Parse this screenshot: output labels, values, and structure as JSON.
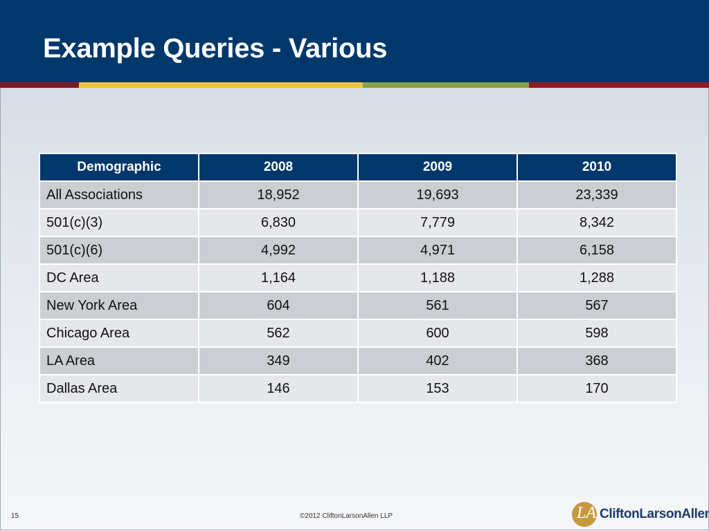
{
  "slide": {
    "title": "Example Queries - Various",
    "page_number": "15",
    "copyright": "©2012 CliftonLarsonAllen LLP",
    "logo_mark": "LA",
    "logo_text": "CliftonLarsonAllen"
  },
  "table": {
    "headers": [
      "Demographic",
      "2008",
      "2009",
      "2010"
    ],
    "rows": [
      [
        "All Associations",
        "18,952",
        "19,693",
        "23,339"
      ],
      [
        "501(c)(3)",
        "6,830",
        "7,779",
        "8,342"
      ],
      [
        "501(c)(6)",
        "4,992",
        "4,971",
        "6,158"
      ],
      [
        "DC Area",
        "1,164",
        "1,188",
        "1,288"
      ],
      [
        "New York Area",
        "604",
        "561",
        "567"
      ],
      [
        "Chicago Area",
        "562",
        "600",
        "598"
      ],
      [
        "LA Area",
        "349",
        "402",
        "368"
      ],
      [
        "Dallas Area",
        "146",
        "153",
        "170"
      ]
    ]
  },
  "colors": {
    "header_blue": "#00386b",
    "stripe_maroon": "#8e1b22",
    "stripe_gold": "#f0c33f",
    "stripe_green": "#8aa04a",
    "row_dark": "#cbced3",
    "row_light": "#e5e7ea",
    "logo_gold": "#c7993f"
  }
}
